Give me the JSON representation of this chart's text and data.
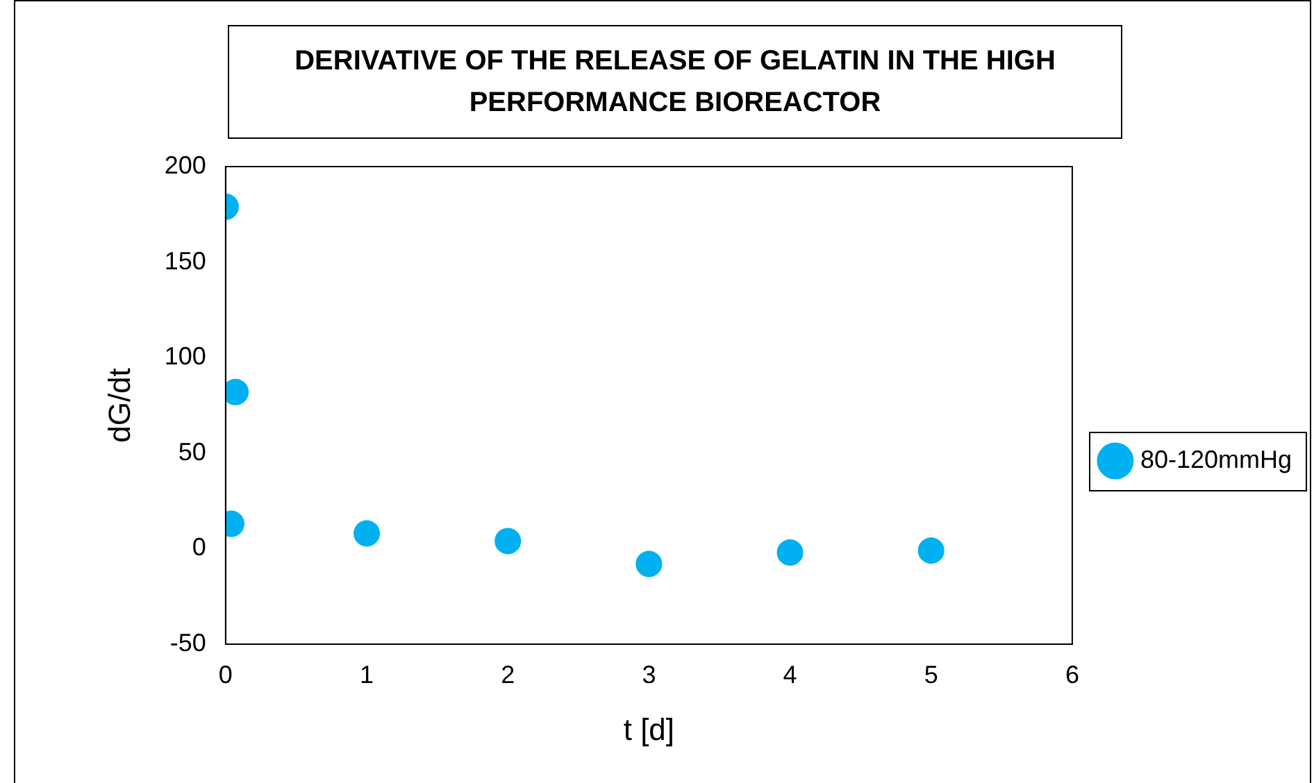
{
  "chart_data": {
    "type": "scatter",
    "title": "DERIVATIVE OF THE RELEASE OF GELATIN IN THE HIGH PERFORMANCE BIOREACTOR",
    "xlabel": "t [d]",
    "ylabel": "dG/dt",
    "series": [
      {
        "name": "80-120mmHg",
        "color": "#00b0f0",
        "x": [
          0,
          0.07,
          0.04,
          1,
          2,
          3,
          4,
          5
        ],
        "values": [
          179,
          82,
          13,
          8,
          4,
          -8,
          -2,
          -1
        ]
      }
    ],
    "xlim": [
      0,
      6
    ],
    "xticks": [
      0,
      1,
      2,
      3,
      4,
      5,
      6
    ],
    "ylim": [
      -50,
      200
    ],
    "yticks": [
      -50,
      0,
      50,
      100,
      150,
      200
    ],
    "grid": false,
    "legend": "right",
    "marker": "circle"
  }
}
